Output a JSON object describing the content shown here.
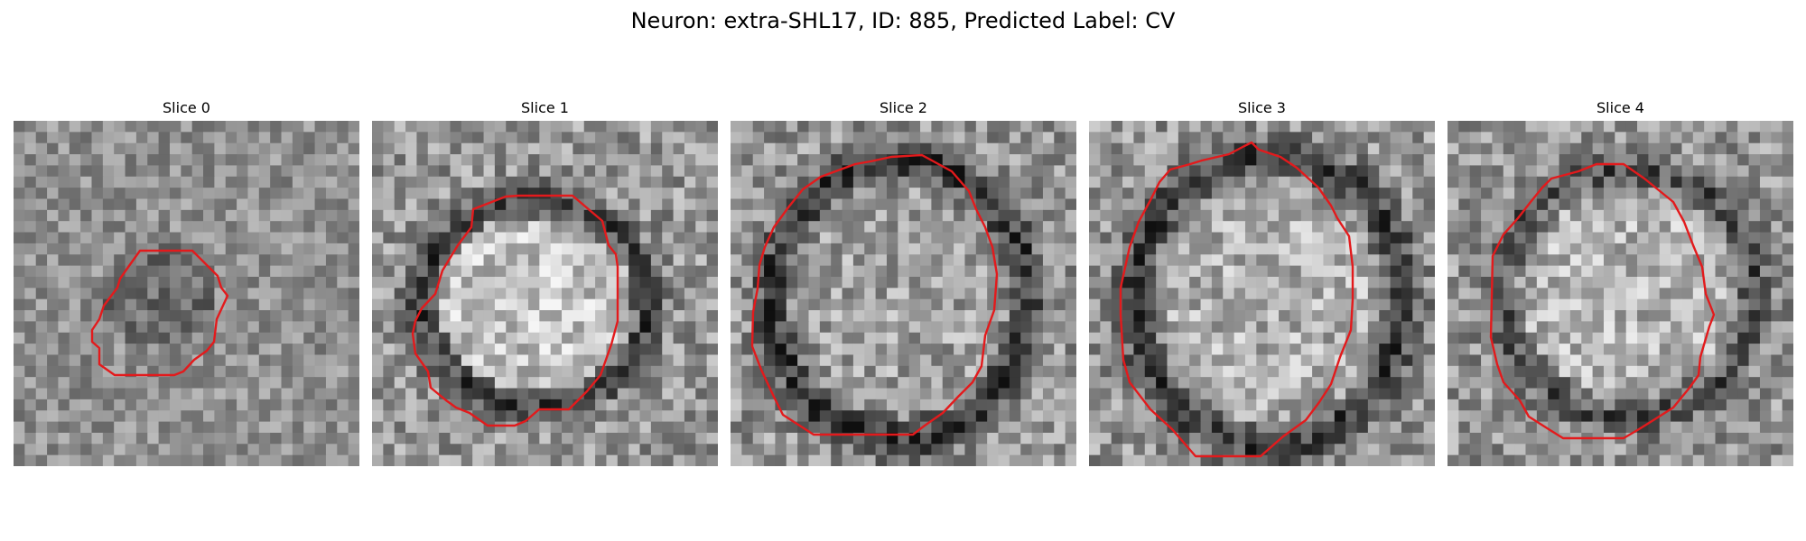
{
  "figure": {
    "title": "Neuron: extra-SHL17, ID: 885, Predicted Label: CV"
  },
  "colors": {
    "contour": "#e31a1c"
  },
  "panels": [
    {
      "label": "Slice 0",
      "contrast": 0.75
    },
    {
      "label": "Slice 1",
      "contrast": 1.0
    },
    {
      "label": "Slice 2",
      "contrast": 1.0
    },
    {
      "label": "Slice 3",
      "contrast": 1.0
    },
    {
      "label": "Slice 4",
      "contrast": 1.0
    }
  ]
}
